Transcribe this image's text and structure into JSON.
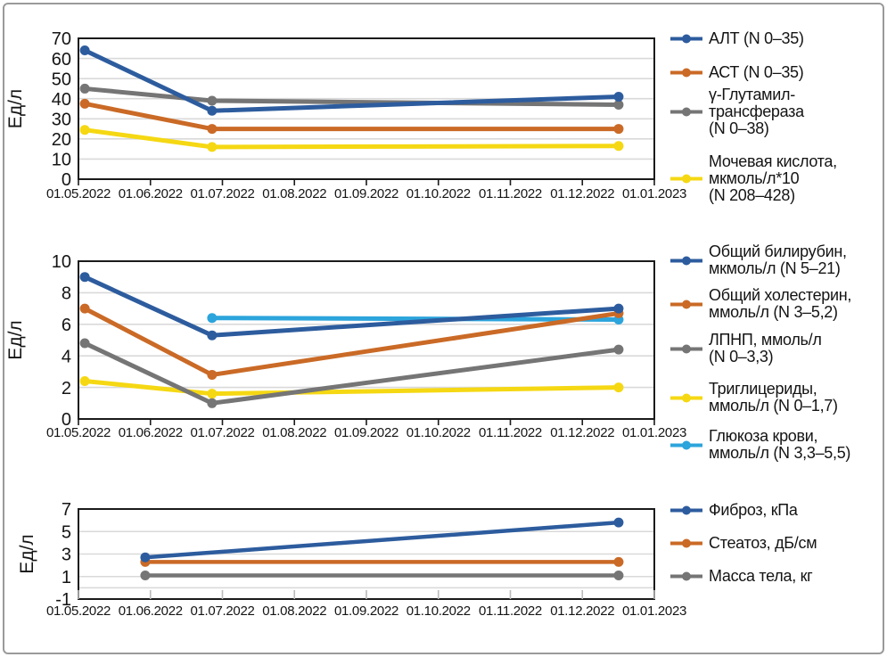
{
  "figure": {
    "background": "#ffffff",
    "frame_color": "#9a9a9a"
  },
  "colors": {
    "blue": "#2D5C9E",
    "orange": "#CA6A26",
    "gray": "#757575",
    "yellow": "#F5D813",
    "light_blue": "#2CA4DC",
    "grid": "#D9D9D9",
    "axis": "#1A1A1A",
    "text": "#141414"
  },
  "chart_data": [
    {
      "type": "line",
      "y_title": "Ед/л",
      "ylim": [
        0,
        70
      ],
      "ytick_step": 10,
      "grid": true,
      "legend_position": "right",
      "x_labels": [
        "01.05.2022",
        "01.06.2022",
        "01.07.2022",
        "01.08.2022",
        "01.09.2022",
        "01.10.2022",
        "01.11.2022",
        "01.12.2022",
        "01.01.2023"
      ],
      "series": [
        {
          "name": "АЛТ (N 0–35)",
          "legend_lines": [
            "АЛТ (N 0–35)"
          ],
          "color": "blue",
          "x_frac": [
            0.011,
            0.232,
            0.938
          ],
          "values": [
            64,
            34,
            41
          ]
        },
        {
          "name": "АСТ (N 0–35)",
          "legend_lines": [
            "АСТ (N 0–35)"
          ],
          "color": "orange",
          "x_frac": [
            0.011,
            0.232,
            0.938
          ],
          "values": [
            37.5,
            25,
            25
          ]
        },
        {
          "name": "γ-Глутамил-трансфераза (N 0–38)",
          "legend_lines": [
            "γ-Глутамил-",
            "трансфераза",
            "(N 0–38)"
          ],
          "color": "gray",
          "x_frac": [
            0.011,
            0.232,
            0.938
          ],
          "values": [
            45,
            39,
            37
          ]
        },
        {
          "name": "Мочевая кислота, мкмоль/л*10 (N 208–428)",
          "legend_lines": [
            "Мочевая кислота,",
            "мкмоль/л*10",
            "(N 208–428)"
          ],
          "color": "yellow",
          "x_frac": [
            0.011,
            0.232,
            0.938
          ],
          "values": [
            24.5,
            16,
            16.5
          ]
        }
      ]
    },
    {
      "type": "line",
      "y_title": "Ед/л",
      "ylim": [
        0,
        10
      ],
      "ytick_step": 2,
      "grid": true,
      "legend_position": "right",
      "x_labels": [
        "01.05.2022",
        "01.06.2022",
        "01.07.2022",
        "01.08.2022",
        "01.09.2022",
        "01.10.2022",
        "01.11.2022",
        "01.12.2022",
        "01.01.2023"
      ],
      "series": [
        {
          "name": "Общий билирубин, мкмоль/л (N 5–21)",
          "legend_lines": [
            "Общий билирубин,",
            "мкмоль/л (N 5–21)"
          ],
          "color": "blue",
          "x_frac": [
            0.011,
            0.232,
            0.938
          ],
          "values": [
            9.0,
            5.3,
            7.0
          ]
        },
        {
          "name": "Общий холестерин, ммоль/л (N 3–5,2)",
          "legend_lines": [
            "Общий холестерин,",
            "ммоль/л (N 3–5,2)"
          ],
          "color": "orange",
          "x_frac": [
            0.011,
            0.232,
            0.938
          ],
          "values": [
            7.0,
            2.8,
            6.7
          ]
        },
        {
          "name": "ЛПНП, ммоль/л (N 0–3,3)",
          "legend_lines": [
            "ЛПНП, ммоль/л",
            "(N 0–3,3)"
          ],
          "color": "gray",
          "x_frac": [
            0.011,
            0.232,
            0.938
          ],
          "values": [
            4.8,
            1.0,
            4.4
          ]
        },
        {
          "name": "Триглицериды, ммоль/л (N 0–1,7)",
          "legend_lines": [
            "Триглицериды,",
            "ммоль/л (N 0–1,7)"
          ],
          "color": "yellow",
          "x_frac": [
            0.011,
            0.232,
            0.938
          ],
          "values": [
            2.4,
            1.6,
            2.0
          ]
        },
        {
          "name": "Глюкоза крови, ммоль/л (N 3,3–5,5)",
          "legend_lines": [
            "Глюкоза крови,",
            "ммоль/л (N 3,3–5,5)"
          ],
          "color": "light_blue",
          "x_frac": [
            0.232,
            0.938
          ],
          "values": [
            6.4,
            6.3
          ]
        }
      ]
    },
    {
      "type": "line",
      "y_title": "Ед/л",
      "ylim": [
        -1,
        7
      ],
      "ytick_step": 2,
      "gridlines_extra": [
        0
      ],
      "grid": true,
      "legend_position": "right",
      "x_labels": [
        "01.05.2022",
        "01.06.2022",
        "01.07.2022",
        "01.08.2022",
        "01.09.2022",
        "01.10.2022",
        "01.11.2022",
        "01.12.2022",
        "01.01.2023"
      ],
      "series": [
        {
          "name": "Фиброз, кПа",
          "legend_lines": [
            "Фиброз, кПа"
          ],
          "color": "blue",
          "x_frac": [
            0.116,
            0.938
          ],
          "values": [
            2.7,
            5.8
          ]
        },
        {
          "name": "Стеатоз, дБ/см",
          "legend_lines": [
            "Стеатоз, дБ/см"
          ],
          "color": "orange",
          "x_frac": [
            0.116,
            0.938
          ],
          "values": [
            2.3,
            2.3
          ]
        },
        {
          "name": "Масса тела, кг",
          "legend_lines": [
            "Масса тела, кг"
          ],
          "color": "gray",
          "x_frac": [
            0.116,
            0.938
          ],
          "values": [
            1.1,
            1.1
          ]
        }
      ]
    }
  ]
}
